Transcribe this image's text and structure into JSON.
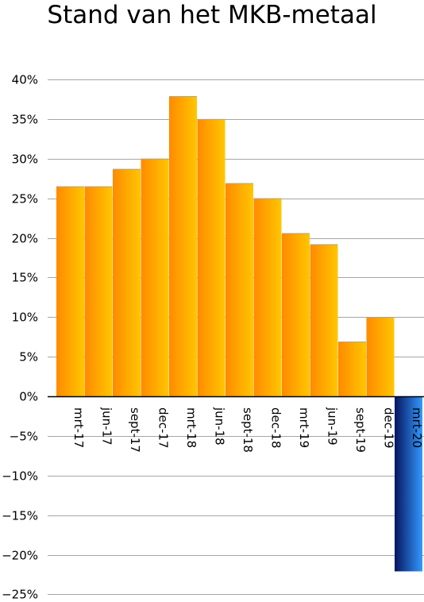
{
  "chart_data": {
    "type": "bar",
    "title": "Stand van het MKB-metaal",
    "xlabel": "",
    "ylabel": "",
    "ylim": [
      -25,
      40
    ],
    "yticks": [
      40,
      35,
      30,
      25,
      20,
      15,
      10,
      5,
      0,
      -5,
      -10,
      -15,
      -20,
      -25
    ],
    "ytick_labels": [
      "40%",
      "35%",
      "30%",
      "25%",
      "20%",
      "15%",
      "10%",
      "5%",
      "0%",
      "−5%",
      "−10%",
      "−15%",
      "−20%",
      "−25%"
    ],
    "grid": true,
    "legend": "none",
    "categories": [
      "mrt-17",
      "jun-17",
      "sept-17",
      "dec-17",
      "mrt-18",
      "jun-18",
      "sept-18",
      "dec-18",
      "mrt-19",
      "jun-19",
      "sept-19",
      "dec-19",
      "mrt-20"
    ],
    "values": [
      26.5,
      26.5,
      28.7,
      30,
      37.9,
      35,
      26.9,
      25,
      20.6,
      19.2,
      6.9,
      10,
      -22.1
    ],
    "colors": {
      "positive_light": "#FFC600",
      "positive_dark": "#FF8A00",
      "negative_dark": "#06145E",
      "negative_light": "#3399FF",
      "grid": "#A6A6A6",
      "axis": "#000000"
    }
  }
}
